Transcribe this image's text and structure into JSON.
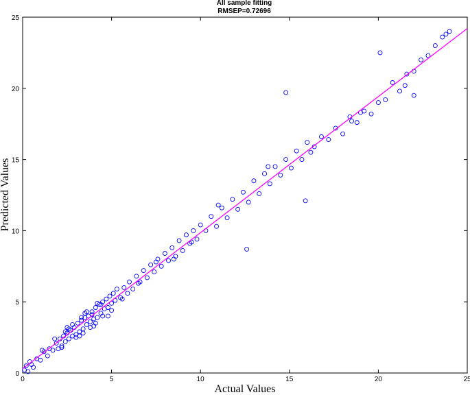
{
  "chart_data": {
    "type": "scatter",
    "title": "All sample fitting",
    "subtitle": "RMSEP=0.72696",
    "xlabel": "Actual Values",
    "ylabel": "Predicted Values",
    "xlim": [
      0,
      25
    ],
    "ylim": [
      0,
      25
    ],
    "xticks": [
      0,
      5,
      10,
      15,
      20,
      25
    ],
    "yticks": [
      0,
      5,
      10,
      15,
      20,
      25
    ],
    "grid": false,
    "legend": "none",
    "marker": "circle-open",
    "marker_color": "#0000ff",
    "fit_line_color": "#ff00ff",
    "fit_line": {
      "x": [
        0,
        25
      ],
      "y": [
        0.3,
        24.2
      ]
    },
    "points": {
      "x": [
        0.1,
        0.2,
        0.3,
        0.4,
        0.6,
        0.8,
        1.0,
        1.2,
        1.4,
        1.5,
        1.7,
        1.9,
        2.0,
        2.1,
        2.2,
        2.3,
        2.4,
        2.5,
        2.6,
        2.7,
        2.8,
        2.9,
        3.0,
        3.1,
        3.2,
        3.3,
        3.4,
        3.5,
        3.6,
        3.7,
        3.8,
        3.9,
        4.0,
        4.1,
        4.2,
        4.3,
        4.4,
        4.5,
        4.6,
        4.7,
        4.8,
        4.9,
        5.0,
        5.1,
        5.2,
        5.3,
        5.5,
        5.7,
        5.9,
        6.0,
        6.2,
        6.4,
        6.6,
        6.8,
        7.0,
        7.2,
        7.4,
        7.6,
        7.8,
        8.0,
        8.2,
        8.4,
        8.6,
        8.8,
        9.0,
        9.2,
        9.4,
        9.6,
        9.8,
        10.0,
        10.3,
        10.6,
        10.9,
        11.2,
        11.5,
        11.8,
        12.1,
        12.4,
        12.7,
        13.0,
        13.3,
        13.6,
        13.9,
        14.2,
        14.5,
        14.8,
        15.1,
        15.4,
        15.7,
        16.0,
        16.4,
        16.8,
        17.2,
        17.6,
        18.0,
        18.4,
        18.8,
        19.2,
        19.6,
        20.0,
        20.4,
        20.8,
        21.2,
        21.6,
        22.0,
        22.4,
        22.8,
        23.2,
        23.6,
        24.0,
        2.5,
        3.0,
        3.5,
        4.0,
        4.5,
        3.2,
        2.8,
        3.8,
        4.2,
        5.0,
        1.8,
        2.2,
        2.6,
        3.4,
        3.6,
        4.8,
        5.6,
        6.5,
        7.5,
        8.5,
        9.5,
        12.6,
        14.8,
        15.9,
        20.1,
        22.0,
        23.8,
        11.0,
        13.8,
        16.2,
        18.5,
        19.0,
        21.5,
        0.5,
        1.1,
        3.9,
        4.1,
        2.4,
        3.3,
        4.4
      ],
      "y": [
        0.2,
        0.5,
        0.1,
        0.8,
        0.4,
        1.0,
        0.9,
        1.5,
        1.2,
        1.7,
        1.6,
        2.1,
        1.7,
        2.4,
        1.9,
        2.6,
        2.2,
        2.8,
        2.4,
        3.0,
        2.6,
        3.2,
        2.7,
        3.5,
        2.9,
        3.7,
        3.1,
        3.9,
        3.4,
        4.0,
        3.6,
        4.3,
        3.8,
        4.6,
        3.9,
        4.8,
        4.2,
        5.0,
        4.5,
        5.2,
        4.6,
        5.4,
        4.9,
        5.6,
        5.1,
        5.9,
        5.3,
        6.0,
        5.6,
        6.4,
        5.9,
        6.8,
        6.4,
        7.2,
        6.7,
        7.6,
        7.1,
        8.0,
        7.5,
        8.4,
        7.9,
        8.8,
        8.2,
        9.3,
        8.6,
        9.7,
        9.1,
        10.0,
        9.4,
        10.4,
        10.0,
        11.0,
        10.3,
        11.6,
        10.9,
        12.2,
        11.5,
        12.7,
        12.0,
        13.5,
        12.6,
        14.0,
        13.3,
        14.5,
        13.9,
        15.0,
        14.4,
        15.6,
        15.0,
        16.2,
        15.9,
        16.6,
        16.4,
        17.2,
        16.8,
        18.0,
        17.6,
        18.4,
        18.2,
        19.0,
        19.2,
        20.4,
        19.8,
        21.0,
        21.2,
        22.0,
        22.3,
        23.0,
        23.6,
        24.0,
        3.2,
        2.5,
        4.2,
        3.3,
        4.0,
        2.6,
        3.4,
        3.2,
        4.9,
        4.4,
        2.4,
        1.8,
        3.1,
        2.8,
        4.3,
        4.0,
        5.2,
        6.3,
        7.8,
        8.0,
        9.2,
        8.7,
        19.7,
        12.1,
        22.5,
        19.5,
        23.8,
        11.8,
        14.5,
        15.5,
        17.7,
        18.3,
        20.2,
        0.6,
        1.6,
        4.1,
        3.5,
        2.9,
        3.9,
        4.8
      ]
    }
  }
}
